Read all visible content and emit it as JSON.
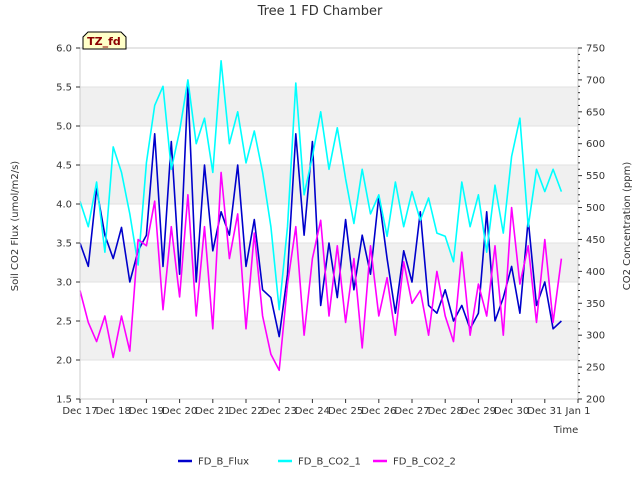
{
  "chart_data": {
    "type": "line",
    "title": "Tree 1 FD Chamber",
    "badge": "TZ_fd",
    "xlabel": "Time",
    "ylabel": "Soil CO2 Flux (umol/m2/s)",
    "y2label": "CO2 Concentration (ppm)",
    "xlim": [
      0,
      15
    ],
    "ylim": [
      1.5,
      6.0
    ],
    "y2lim": [
      200,
      750
    ],
    "x_ticks": [
      0,
      1,
      2,
      3,
      4,
      5,
      6,
      7,
      8,
      9,
      10,
      11,
      12,
      13,
      14,
      15
    ],
    "x_tick_labels": [
      "Dec 17",
      "Dec 18",
      "Dec 19",
      "Dec 20",
      "Dec 21",
      "Dec 22",
      "Dec 23",
      "Dec 24",
      "Dec 25",
      "Dec 26",
      "Dec 27",
      "Dec 28",
      "Dec 29",
      "Dec 30",
      "Dec 31",
      "Jan 1"
    ],
    "y_ticks": [
      1.5,
      2.0,
      2.5,
      3.0,
      3.5,
      4.0,
      4.5,
      5.0,
      5.5,
      6.0
    ],
    "y_tick_labels": [
      "1.5",
      "2.0",
      "2.5",
      "3.0",
      "3.5",
      "4.0",
      "4.5",
      "5.0",
      "5.5",
      "6.0"
    ],
    "y2_ticks": [
      200,
      250,
      300,
      350,
      400,
      450,
      500,
      550,
      600,
      650,
      700,
      750
    ],
    "y2_tick_labels": [
      "200",
      "250",
      "300",
      "350",
      "400",
      "450",
      "500",
      "550",
      "600",
      "650",
      "700",
      "750"
    ],
    "band_ranges": [
      [
        2.0,
        2.5
      ],
      [
        3.0,
        3.5
      ],
      [
        4.0,
        4.5
      ],
      [
        5.0,
        5.5
      ]
    ],
    "series": [
      {
        "name": "FD_B_Flux",
        "color": "#0000cc",
        "axis": "left",
        "x": [
          0.0,
          0.25,
          0.5,
          0.75,
          1.0,
          1.25,
          1.5,
          1.75,
          2.0,
          2.25,
          2.5,
          2.75,
          3.0,
          3.25,
          3.5,
          3.75,
          4.0,
          4.25,
          4.5,
          4.75,
          5.0,
          5.25,
          5.5,
          5.75,
          6.0,
          6.25,
          6.5,
          6.75,
          7.0,
          7.25,
          7.5,
          7.75,
          8.0,
          8.25,
          8.5,
          8.75,
          9.0,
          9.25,
          9.5,
          9.75,
          10.0,
          10.25,
          10.5,
          10.75,
          11.0,
          11.25,
          11.5,
          11.75,
          12.0,
          12.25,
          12.5,
          12.75,
          13.0,
          13.25,
          13.5,
          13.75,
          14.0,
          14.25,
          14.5
        ],
        "values": [
          3.5,
          3.2,
          4.2,
          3.6,
          3.3,
          3.7,
          3.0,
          3.4,
          3.6,
          4.9,
          3.2,
          4.8,
          3.1,
          5.5,
          3.0,
          4.5,
          3.4,
          3.9,
          3.6,
          4.5,
          3.2,
          3.8,
          2.9,
          2.8,
          2.3,
          3.1,
          4.9,
          3.6,
          4.8,
          2.7,
          3.5,
          2.8,
          3.8,
          2.9,
          3.6,
          3.1,
          4.1,
          3.3,
          2.6,
          3.4,
          3.0,
          3.9,
          2.7,
          2.6,
          2.9,
          2.5,
          2.7,
          2.4,
          2.6,
          3.9,
          2.5,
          2.8,
          3.2,
          2.6,
          3.8,
          2.7,
          3.0,
          2.4,
          2.5
        ]
      },
      {
        "name": "FD_B_CO2_1",
        "color": "#00ffff",
        "axis": "right",
        "x": [
          0.0,
          0.25,
          0.5,
          0.75,
          1.0,
          1.25,
          1.5,
          1.75,
          2.0,
          2.25,
          2.5,
          2.75,
          3.0,
          3.25,
          3.5,
          3.75,
          4.0,
          4.25,
          4.5,
          4.75,
          5.0,
          5.25,
          5.5,
          5.75,
          6.0,
          6.25,
          6.5,
          6.75,
          7.0,
          7.25,
          7.5,
          7.75,
          8.0,
          8.25,
          8.5,
          8.75,
          9.0,
          9.25,
          9.5,
          9.75,
          10.0,
          10.25,
          10.5,
          10.75,
          11.0,
          11.25,
          11.5,
          11.75,
          12.0,
          12.25,
          12.5,
          12.75,
          13.0,
          13.25,
          13.5,
          13.75,
          14.0,
          14.25,
          14.5
        ],
        "values": [
          510,
          470,
          540,
          430,
          595,
          555,
          490,
          410,
          570,
          660,
          690,
          560,
          620,
          700,
          600,
          640,
          555,
          730,
          600,
          650,
          570,
          620,
          555,
          470,
          340,
          470,
          695,
          520,
          580,
          650,
          560,
          625,
          545,
          475,
          560,
          490,
          520,
          455,
          540,
          470,
          525,
          480,
          515,
          460,
          455,
          415,
          540,
          470,
          520,
          430,
          535,
          460,
          580,
          640,
          470,
          560,
          525,
          560,
          525
        ]
      },
      {
        "name": "FD_B_CO2_2",
        "color": "#ff00ff",
        "axis": "right",
        "x": [
          0.0,
          0.25,
          0.5,
          0.75,
          1.0,
          1.25,
          1.5,
          1.75,
          2.0,
          2.25,
          2.5,
          2.75,
          3.0,
          3.25,
          3.5,
          3.75,
          4.0,
          4.25,
          4.5,
          4.75,
          5.0,
          5.25,
          5.5,
          5.75,
          6.0,
          6.25,
          6.5,
          6.75,
          7.0,
          7.25,
          7.5,
          7.75,
          8.0,
          8.25,
          8.5,
          8.75,
          9.0,
          9.25,
          9.5,
          9.75,
          10.0,
          10.25,
          10.5,
          10.75,
          11.0,
          11.25,
          11.5,
          11.75,
          12.0,
          12.25,
          12.5,
          12.75,
          13.0,
          13.25,
          13.5,
          13.75,
          14.0,
          14.25,
          14.5
        ],
        "values": [
          370,
          320,
          290,
          330,
          265,
          330,
          275,
          450,
          440,
          510,
          340,
          470,
          360,
          520,
          330,
          470,
          310,
          555,
          420,
          490,
          310,
          460,
          330,
          270,
          245,
          380,
          470,
          300,
          420,
          480,
          330,
          440,
          320,
          420,
          280,
          440,
          330,
          390,
          300,
          415,
          350,
          370,
          300,
          400,
          330,
          290,
          430,
          300,
          380,
          330,
          440,
          300,
          500,
          380,
          440,
          320,
          450,
          320,
          420
        ]
      }
    ]
  }
}
